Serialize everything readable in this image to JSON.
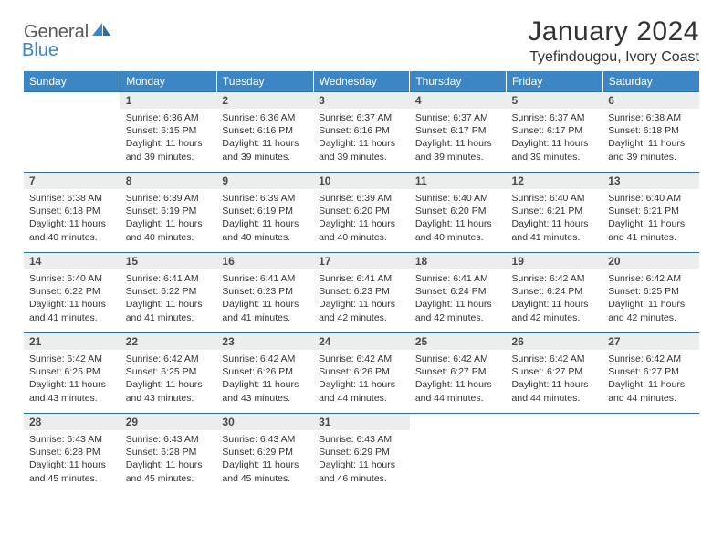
{
  "brand": {
    "part1": "General",
    "part2": "Blue"
  },
  "title": "January 2024",
  "location": "Tyefindougou, Ivory Coast",
  "colors": {
    "header_bg": "#3d86c6",
    "header_text": "#ffffff",
    "daynum_bg": "#eceded",
    "border": "#2e6da4",
    "brand_gray": "#58595b",
    "brand_blue": "#3d86c6"
  },
  "weekdays": [
    "Sunday",
    "Monday",
    "Tuesday",
    "Wednesday",
    "Thursday",
    "Friday",
    "Saturday"
  ],
  "weeks": [
    [
      {
        "day": "",
        "sunrise": "",
        "sunset": "",
        "daylight1": "",
        "daylight2": "",
        "empty": true
      },
      {
        "day": "1",
        "sunrise": "Sunrise: 6:36 AM",
        "sunset": "Sunset: 6:15 PM",
        "daylight1": "Daylight: 11 hours",
        "daylight2": "and 39 minutes."
      },
      {
        "day": "2",
        "sunrise": "Sunrise: 6:36 AM",
        "sunset": "Sunset: 6:16 PM",
        "daylight1": "Daylight: 11 hours",
        "daylight2": "and 39 minutes."
      },
      {
        "day": "3",
        "sunrise": "Sunrise: 6:37 AM",
        "sunset": "Sunset: 6:16 PM",
        "daylight1": "Daylight: 11 hours",
        "daylight2": "and 39 minutes."
      },
      {
        "day": "4",
        "sunrise": "Sunrise: 6:37 AM",
        "sunset": "Sunset: 6:17 PM",
        "daylight1": "Daylight: 11 hours",
        "daylight2": "and 39 minutes."
      },
      {
        "day": "5",
        "sunrise": "Sunrise: 6:37 AM",
        "sunset": "Sunset: 6:17 PM",
        "daylight1": "Daylight: 11 hours",
        "daylight2": "and 39 minutes."
      },
      {
        "day": "6",
        "sunrise": "Sunrise: 6:38 AM",
        "sunset": "Sunset: 6:18 PM",
        "daylight1": "Daylight: 11 hours",
        "daylight2": "and 39 minutes."
      }
    ],
    [
      {
        "day": "7",
        "sunrise": "Sunrise: 6:38 AM",
        "sunset": "Sunset: 6:18 PM",
        "daylight1": "Daylight: 11 hours",
        "daylight2": "and 40 minutes."
      },
      {
        "day": "8",
        "sunrise": "Sunrise: 6:39 AM",
        "sunset": "Sunset: 6:19 PM",
        "daylight1": "Daylight: 11 hours",
        "daylight2": "and 40 minutes."
      },
      {
        "day": "9",
        "sunrise": "Sunrise: 6:39 AM",
        "sunset": "Sunset: 6:19 PM",
        "daylight1": "Daylight: 11 hours",
        "daylight2": "and 40 minutes."
      },
      {
        "day": "10",
        "sunrise": "Sunrise: 6:39 AM",
        "sunset": "Sunset: 6:20 PM",
        "daylight1": "Daylight: 11 hours",
        "daylight2": "and 40 minutes."
      },
      {
        "day": "11",
        "sunrise": "Sunrise: 6:40 AM",
        "sunset": "Sunset: 6:20 PM",
        "daylight1": "Daylight: 11 hours",
        "daylight2": "and 40 minutes."
      },
      {
        "day": "12",
        "sunrise": "Sunrise: 6:40 AM",
        "sunset": "Sunset: 6:21 PM",
        "daylight1": "Daylight: 11 hours",
        "daylight2": "and 41 minutes."
      },
      {
        "day": "13",
        "sunrise": "Sunrise: 6:40 AM",
        "sunset": "Sunset: 6:21 PM",
        "daylight1": "Daylight: 11 hours",
        "daylight2": "and 41 minutes."
      }
    ],
    [
      {
        "day": "14",
        "sunrise": "Sunrise: 6:40 AM",
        "sunset": "Sunset: 6:22 PM",
        "daylight1": "Daylight: 11 hours",
        "daylight2": "and 41 minutes."
      },
      {
        "day": "15",
        "sunrise": "Sunrise: 6:41 AM",
        "sunset": "Sunset: 6:22 PM",
        "daylight1": "Daylight: 11 hours",
        "daylight2": "and 41 minutes."
      },
      {
        "day": "16",
        "sunrise": "Sunrise: 6:41 AM",
        "sunset": "Sunset: 6:23 PM",
        "daylight1": "Daylight: 11 hours",
        "daylight2": "and 41 minutes."
      },
      {
        "day": "17",
        "sunrise": "Sunrise: 6:41 AM",
        "sunset": "Sunset: 6:23 PM",
        "daylight1": "Daylight: 11 hours",
        "daylight2": "and 42 minutes."
      },
      {
        "day": "18",
        "sunrise": "Sunrise: 6:41 AM",
        "sunset": "Sunset: 6:24 PM",
        "daylight1": "Daylight: 11 hours",
        "daylight2": "and 42 minutes."
      },
      {
        "day": "19",
        "sunrise": "Sunrise: 6:42 AM",
        "sunset": "Sunset: 6:24 PM",
        "daylight1": "Daylight: 11 hours",
        "daylight2": "and 42 minutes."
      },
      {
        "day": "20",
        "sunrise": "Sunrise: 6:42 AM",
        "sunset": "Sunset: 6:25 PM",
        "daylight1": "Daylight: 11 hours",
        "daylight2": "and 42 minutes."
      }
    ],
    [
      {
        "day": "21",
        "sunrise": "Sunrise: 6:42 AM",
        "sunset": "Sunset: 6:25 PM",
        "daylight1": "Daylight: 11 hours",
        "daylight2": "and 43 minutes."
      },
      {
        "day": "22",
        "sunrise": "Sunrise: 6:42 AM",
        "sunset": "Sunset: 6:25 PM",
        "daylight1": "Daylight: 11 hours",
        "daylight2": "and 43 minutes."
      },
      {
        "day": "23",
        "sunrise": "Sunrise: 6:42 AM",
        "sunset": "Sunset: 6:26 PM",
        "daylight1": "Daylight: 11 hours",
        "daylight2": "and 43 minutes."
      },
      {
        "day": "24",
        "sunrise": "Sunrise: 6:42 AM",
        "sunset": "Sunset: 6:26 PM",
        "daylight1": "Daylight: 11 hours",
        "daylight2": "and 44 minutes."
      },
      {
        "day": "25",
        "sunrise": "Sunrise: 6:42 AM",
        "sunset": "Sunset: 6:27 PM",
        "daylight1": "Daylight: 11 hours",
        "daylight2": "and 44 minutes."
      },
      {
        "day": "26",
        "sunrise": "Sunrise: 6:42 AM",
        "sunset": "Sunset: 6:27 PM",
        "daylight1": "Daylight: 11 hours",
        "daylight2": "and 44 minutes."
      },
      {
        "day": "27",
        "sunrise": "Sunrise: 6:42 AM",
        "sunset": "Sunset: 6:27 PM",
        "daylight1": "Daylight: 11 hours",
        "daylight2": "and 44 minutes."
      }
    ],
    [
      {
        "day": "28",
        "sunrise": "Sunrise: 6:43 AM",
        "sunset": "Sunset: 6:28 PM",
        "daylight1": "Daylight: 11 hours",
        "daylight2": "and 45 minutes."
      },
      {
        "day": "29",
        "sunrise": "Sunrise: 6:43 AM",
        "sunset": "Sunset: 6:28 PM",
        "daylight1": "Daylight: 11 hours",
        "daylight2": "and 45 minutes."
      },
      {
        "day": "30",
        "sunrise": "Sunrise: 6:43 AM",
        "sunset": "Sunset: 6:29 PM",
        "daylight1": "Daylight: 11 hours",
        "daylight2": "and 45 minutes."
      },
      {
        "day": "31",
        "sunrise": "Sunrise: 6:43 AM",
        "sunset": "Sunset: 6:29 PM",
        "daylight1": "Daylight: 11 hours",
        "daylight2": "and 46 minutes."
      },
      {
        "day": "",
        "sunrise": "",
        "sunset": "",
        "daylight1": "",
        "daylight2": "",
        "empty": true
      },
      {
        "day": "",
        "sunrise": "",
        "sunset": "",
        "daylight1": "",
        "daylight2": "",
        "empty": true
      },
      {
        "day": "",
        "sunrise": "",
        "sunset": "",
        "daylight1": "",
        "daylight2": "",
        "empty": true
      }
    ]
  ]
}
